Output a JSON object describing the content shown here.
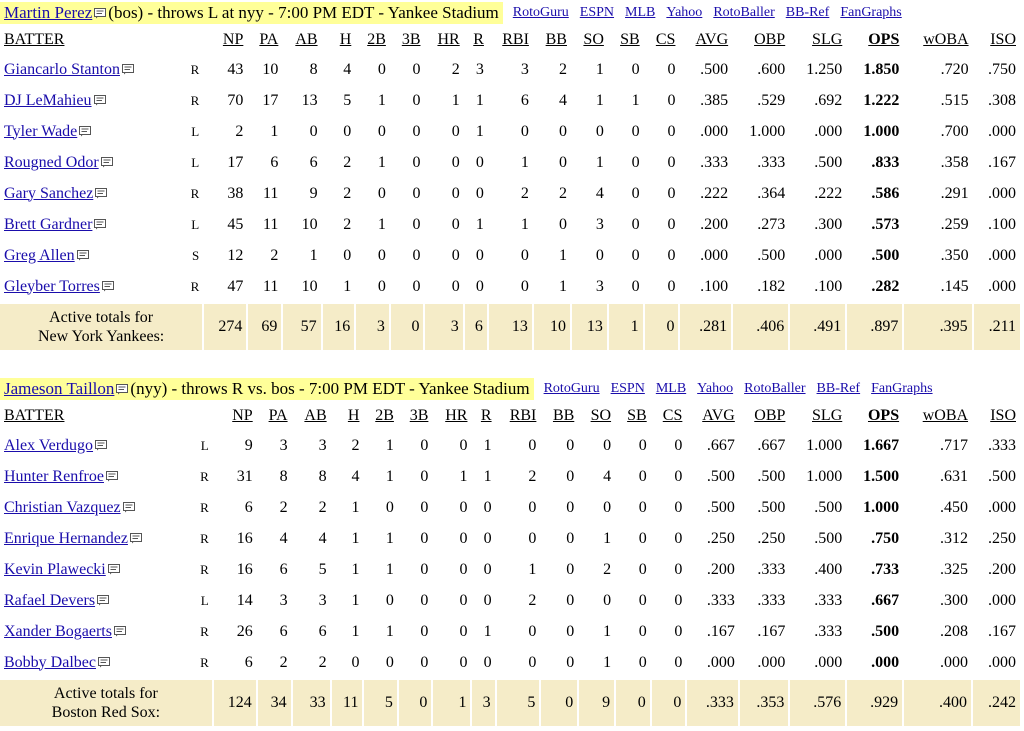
{
  "columns": [
    "NP",
    "PA",
    "AB",
    "H",
    "2B",
    "3B",
    "HR",
    "R",
    "RBI",
    "BB",
    "SO",
    "SB",
    "CS",
    "AVG",
    "OBP",
    "SLG",
    "OPS",
    "wOBA",
    "ISO"
  ],
  "batter_header": "BATTER",
  "links": [
    "RotoGuru",
    "ESPN",
    "MLB",
    "Yahoo",
    "RotoBaller",
    "BB-Ref",
    "FanGraphs"
  ],
  "games": [
    {
      "pitcher_name": "Martin Perez",
      "pitcher_info": "(bos) - throws L at nyy - 7:00 PM EDT - Yankee Stadium",
      "batters": [
        {
          "name": "Giancarlo Stanton",
          "hand": "R",
          "stats": [
            "43",
            "10",
            "8",
            "4",
            "0",
            "0",
            "2",
            "3",
            "3",
            "2",
            "1",
            "0",
            "0",
            ".500",
            ".600",
            "1.250",
            "1.850",
            ".720",
            ".750"
          ]
        },
        {
          "name": "DJ LeMahieu",
          "hand": "R",
          "stats": [
            "70",
            "17",
            "13",
            "5",
            "1",
            "0",
            "1",
            "1",
            "6",
            "4",
            "1",
            "1",
            "0",
            ".385",
            ".529",
            ".692",
            "1.222",
            ".515",
            ".308"
          ]
        },
        {
          "name": "Tyler Wade",
          "hand": "L",
          "stats": [
            "2",
            "1",
            "0",
            "0",
            "0",
            "0",
            "0",
            "1",
            "0",
            "0",
            "0",
            "0",
            "0",
            ".000",
            "1.000",
            ".000",
            "1.000",
            ".700",
            ".000"
          ]
        },
        {
          "name": "Rougned Odor",
          "hand": "L",
          "stats": [
            "17",
            "6",
            "6",
            "2",
            "1",
            "0",
            "0",
            "0",
            "1",
            "0",
            "1",
            "0",
            "0",
            ".333",
            ".333",
            ".500",
            ".833",
            ".358",
            ".167"
          ]
        },
        {
          "name": "Gary Sanchez",
          "hand": "R",
          "stats": [
            "38",
            "11",
            "9",
            "2",
            "0",
            "0",
            "0",
            "0",
            "2",
            "2",
            "4",
            "0",
            "0",
            ".222",
            ".364",
            ".222",
            ".586",
            ".291",
            ".000"
          ]
        },
        {
          "name": "Brett Gardner",
          "hand": "L",
          "stats": [
            "45",
            "11",
            "10",
            "2",
            "1",
            "0",
            "0",
            "1",
            "1",
            "0",
            "3",
            "0",
            "0",
            ".200",
            ".273",
            ".300",
            ".573",
            ".259",
            ".100"
          ]
        },
        {
          "name": "Greg Allen",
          "hand": "S",
          "stats": [
            "12",
            "2",
            "1",
            "0",
            "0",
            "0",
            "0",
            "0",
            "0",
            "1",
            "0",
            "0",
            "0",
            ".000",
            ".500",
            ".000",
            ".500",
            ".350",
            ".000"
          ]
        },
        {
          "name": "Gleyber Torres",
          "hand": "R",
          "stats": [
            "47",
            "11",
            "10",
            "1",
            "0",
            "0",
            "0",
            "0",
            "0",
            "1",
            "3",
            "0",
            "0",
            ".100",
            ".182",
            ".100",
            ".282",
            ".145",
            ".000"
          ]
        }
      ],
      "totals_label_1": "Active totals for",
      "totals_label_2": "New York Yankees:",
      "totals": [
        "274",
        "69",
        "57",
        "16",
        "3",
        "0",
        "3",
        "6",
        "13",
        "10",
        "13",
        "1",
        "0",
        ".281",
        ".406",
        ".491",
        ".897",
        ".395",
        ".211"
      ]
    },
    {
      "pitcher_name": "Jameson Taillon",
      "pitcher_info": "(nyy) - throws R vs. bos - 7:00 PM EDT - Yankee Stadium",
      "batters": [
        {
          "name": "Alex Verdugo",
          "hand": "L",
          "stats": [
            "9",
            "3",
            "3",
            "2",
            "1",
            "0",
            "0",
            "1",
            "0",
            "0",
            "0",
            "0",
            "0",
            ".667",
            ".667",
            "1.000",
            "1.667",
            ".717",
            ".333"
          ]
        },
        {
          "name": "Hunter Renfroe",
          "hand": "R",
          "stats": [
            "31",
            "8",
            "8",
            "4",
            "1",
            "0",
            "1",
            "1",
            "2",
            "0",
            "4",
            "0",
            "0",
            ".500",
            ".500",
            "1.000",
            "1.500",
            ".631",
            ".500"
          ]
        },
        {
          "name": "Christian Vazquez",
          "hand": "R",
          "stats": [
            "6",
            "2",
            "2",
            "1",
            "0",
            "0",
            "0",
            "0",
            "0",
            "0",
            "0",
            "0",
            "0",
            ".500",
            ".500",
            ".500",
            "1.000",
            ".450",
            ".000"
          ]
        },
        {
          "name": "Enrique Hernandez",
          "hand": "R",
          "stats": [
            "16",
            "4",
            "4",
            "1",
            "1",
            "0",
            "0",
            "0",
            "0",
            "0",
            "1",
            "0",
            "0",
            ".250",
            ".250",
            ".500",
            ".750",
            ".312",
            ".250"
          ]
        },
        {
          "name": "Kevin Plawecki",
          "hand": "R",
          "stats": [
            "16",
            "6",
            "5",
            "1",
            "1",
            "0",
            "0",
            "0",
            "1",
            "0",
            "2",
            "0",
            "0",
            ".200",
            ".333",
            ".400",
            ".733",
            ".325",
            ".200"
          ]
        },
        {
          "name": "Rafael Devers",
          "hand": "L",
          "stats": [
            "14",
            "3",
            "3",
            "1",
            "0",
            "0",
            "0",
            "0",
            "2",
            "0",
            "0",
            "0",
            "0",
            ".333",
            ".333",
            ".333",
            ".667",
            ".300",
            ".000"
          ]
        },
        {
          "name": "Xander Bogaerts",
          "hand": "R",
          "stats": [
            "26",
            "6",
            "6",
            "1",
            "1",
            "0",
            "0",
            "1",
            "0",
            "0",
            "1",
            "0",
            "0",
            ".167",
            ".167",
            ".333",
            ".500",
            ".208",
            ".167"
          ]
        },
        {
          "name": "Bobby Dalbec",
          "hand": "R",
          "stats": [
            "6",
            "2",
            "2",
            "0",
            "0",
            "0",
            "0",
            "0",
            "0",
            "0",
            "1",
            "0",
            "0",
            ".000",
            ".000",
            ".000",
            ".000",
            ".000",
            ".000"
          ]
        }
      ],
      "totals_label_1": "Active totals for",
      "totals_label_2": "Boston Red Sox:",
      "totals": [
        "124",
        "34",
        "33",
        "11",
        "5",
        "0",
        "1",
        "3",
        "5",
        "0",
        "9",
        "0",
        "0",
        ".333",
        ".353",
        ".576",
        ".929",
        ".400",
        ".242"
      ]
    }
  ],
  "colors": {
    "link": "#1a0dab",
    "pitcher_highlight": "#ffff99",
    "totals_bg": "#f5ecc8"
  }
}
